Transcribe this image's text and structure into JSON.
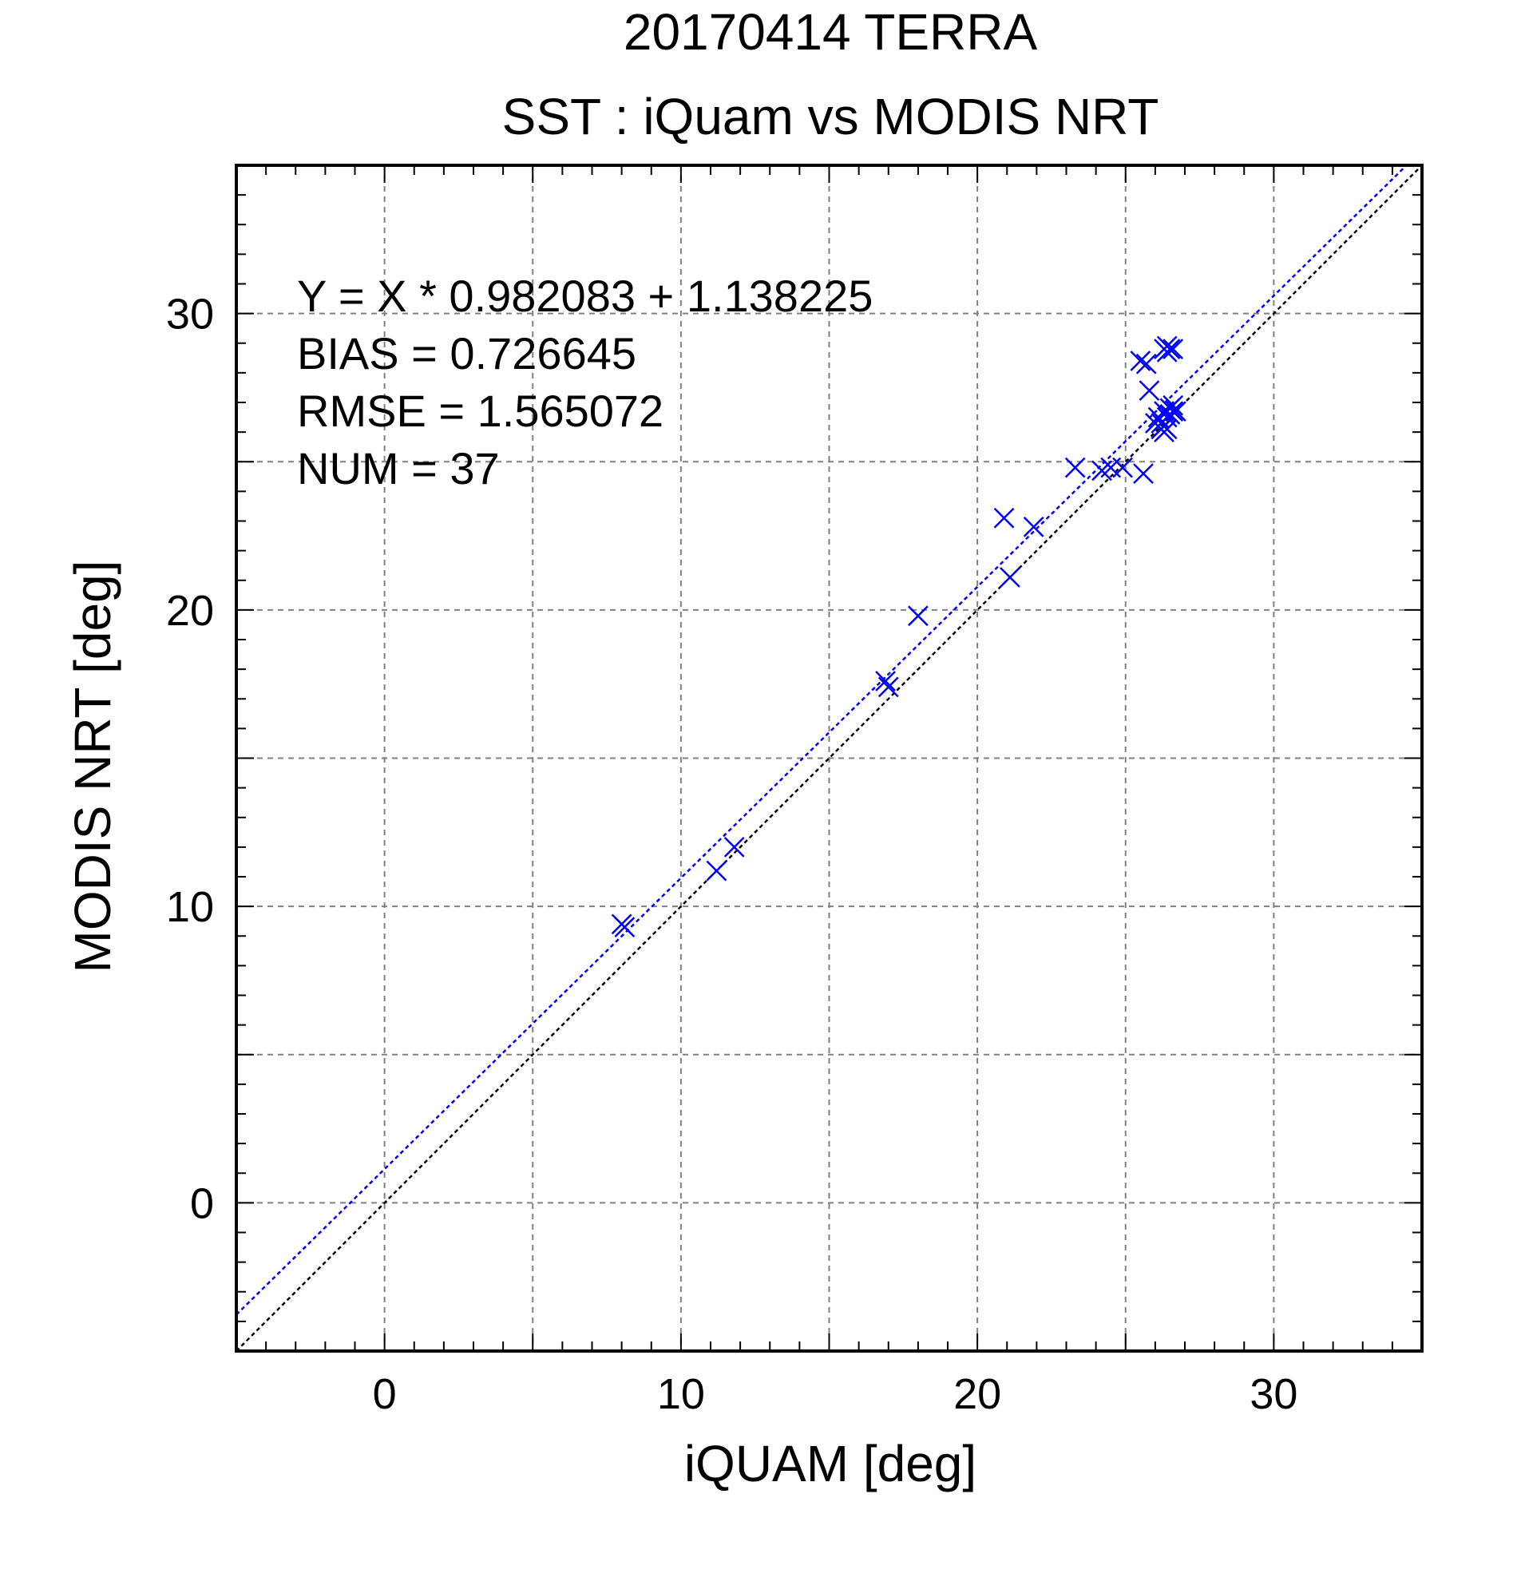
{
  "chart_data": {
    "type": "scatter",
    "title": "20170414 TERRA",
    "subtitle": "SST : iQuam vs MODIS NRT",
    "xlabel": "iQUAM [deg]",
    "ylabel": "MODIS NRT [deg]",
    "xlim": [
      -5,
      35
    ],
    "ylim": [
      -5,
      35
    ],
    "x_ticks": [
      0,
      10,
      20,
      30
    ],
    "y_ticks": [
      0,
      10,
      20,
      30
    ],
    "grid_ticks": [
      0,
      5,
      10,
      15,
      20,
      25,
      30
    ],
    "minor_tick_step": 1,
    "grid": true,
    "colors": {
      "points": "#0000ff",
      "fit_line": "#0000ff",
      "identity_line": "#000000",
      "grid": "#808080"
    },
    "fit": {
      "slope": 0.982083,
      "intercept": 1.138225
    },
    "identity": {
      "slope": 1,
      "intercept": 0
    },
    "stats": [
      "Y = X * 0.982083 + 1.138225",
      "BIAS = 0.726645",
      "RMSE = 1.565072",
      "NUM = 37"
    ],
    "series": [
      {
        "marker": "x",
        "points": [
          [
            8.0,
            9.4
          ],
          [
            8.1,
            9.3
          ],
          [
            11.2,
            11.2
          ],
          [
            11.8,
            12.0
          ],
          [
            16.9,
            17.6
          ],
          [
            17.0,
            17.4
          ],
          [
            18.0,
            19.8
          ],
          [
            20.9,
            23.1
          ],
          [
            21.1,
            21.1
          ],
          [
            21.9,
            22.8
          ],
          [
            23.3,
            24.8
          ],
          [
            24.2,
            24.7
          ],
          [
            24.5,
            24.8
          ],
          [
            24.9,
            24.8
          ],
          [
            25.5,
            28.4
          ],
          [
            25.7,
            28.3
          ],
          [
            25.6,
            24.6
          ],
          [
            25.8,
            27.4
          ],
          [
            26.0,
            26.3
          ],
          [
            26.1,
            26.5
          ],
          [
            26.2,
            26.1
          ],
          [
            26.3,
            26.0
          ],
          [
            26.2,
            26.3
          ],
          [
            26.3,
            26.2
          ],
          [
            26.4,
            26.1
          ],
          [
            26.3,
            28.8
          ],
          [
            26.4,
            28.9
          ],
          [
            26.5,
            28.8
          ],
          [
            26.6,
            28.8
          ],
          [
            26.4,
            28.7
          ],
          [
            26.5,
            26.8
          ],
          [
            26.6,
            26.9
          ],
          [
            26.7,
            26.7
          ],
          [
            26.5,
            26.6
          ],
          [
            26.3,
            26.7
          ],
          [
            26.4,
            26.5
          ],
          [
            26.6,
            26.7
          ]
        ]
      }
    ]
  }
}
